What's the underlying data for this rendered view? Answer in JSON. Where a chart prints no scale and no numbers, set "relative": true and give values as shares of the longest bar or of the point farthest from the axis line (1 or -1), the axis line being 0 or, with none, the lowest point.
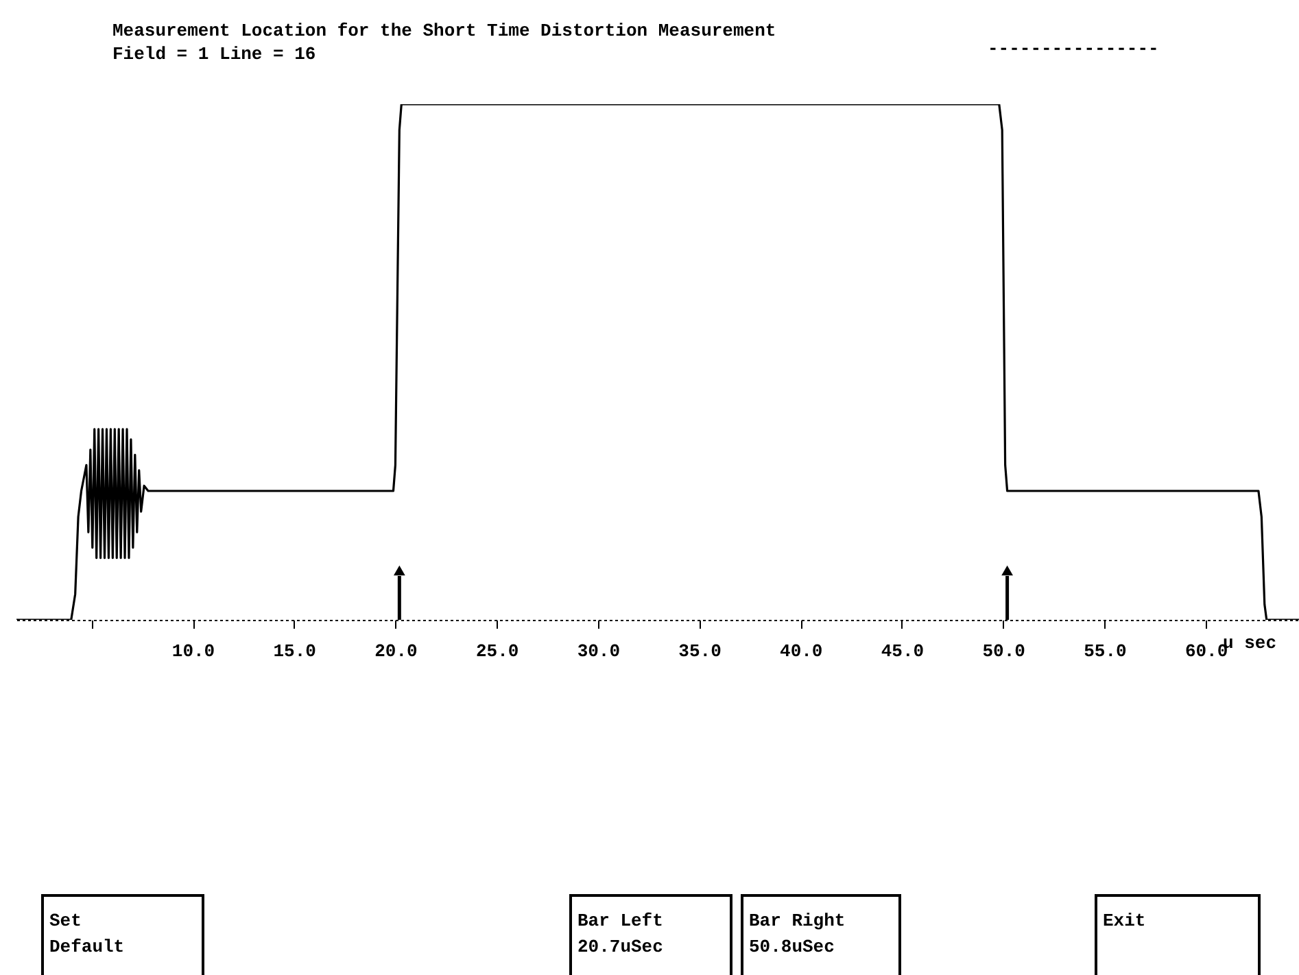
{
  "chart_data": {
    "type": "line",
    "title": "Measurement Location for the Short Time Distortion Measurement",
    "subtitle": "Field = 1 Line =  16",
    "xlabel": "u sec",
    "relative": true,
    "grid": false,
    "marker": "none",
    "line_style": "solid",
    "xlim": [
      1.3,
      64.6
    ],
    "xticks": [
      {
        "value": 5,
        "label": null
      },
      {
        "value": 10,
        "label": "10.0"
      },
      {
        "value": 15,
        "label": "15.0"
      },
      {
        "value": 20,
        "label": "20.0"
      },
      {
        "value": 25,
        "label": "25.0"
      },
      {
        "value": 30,
        "label": "30.0"
      },
      {
        "value": 35,
        "label": "35.0"
      },
      {
        "value": 40,
        "label": "40.0"
      },
      {
        "value": 45,
        "label": "45.0"
      },
      {
        "value": 50,
        "label": "50.0"
      },
      {
        "value": 55,
        "label": "55.0"
      },
      {
        "value": 60,
        "label": "60.0"
      }
    ],
    "series": [
      {
        "color": "#000000",
        "x": [
          1.3,
          4.0,
          4.2,
          4.35,
          4.5,
          4.6,
          4.75,
          4.85,
          4.95,
          5.05,
          5.15,
          5.25,
          5.35,
          5.45,
          5.55,
          5.65,
          5.75,
          5.85,
          5.95,
          6.05,
          6.15,
          6.25,
          6.35,
          6.45,
          6.55,
          6.65,
          6.75,
          6.85,
          6.95,
          7.05,
          7.15,
          7.25,
          7.35,
          7.45,
          7.6,
          7.8,
          19.9,
          20.0,
          20.2,
          20.3,
          49.8,
          49.95,
          50.1,
          50.2,
          62.6,
          62.75,
          62.9,
          63.0,
          64.6
        ],
        "values": [
          0,
          0,
          0.05,
          0.2,
          0.25,
          0.27,
          0.3,
          0.17,
          0.33,
          0.14,
          0.37,
          0.12,
          0.37,
          0.12,
          0.37,
          0.12,
          0.37,
          0.12,
          0.37,
          0.12,
          0.37,
          0.12,
          0.37,
          0.12,
          0.37,
          0.12,
          0.37,
          0.12,
          0.35,
          0.14,
          0.32,
          0.17,
          0.29,
          0.21,
          0.26,
          0.25,
          0.25,
          0.3,
          0.95,
          1.0,
          1.0,
          0.95,
          0.3,
          0.25,
          0.25,
          0.2,
          0.03,
          0,
          0
        ]
      }
    ],
    "ref_lines": [
      {
        "axis": "x",
        "value": 20.2
      },
      {
        "axis": "x",
        "value": 50.2
      }
    ],
    "annotations": [
      "----------------",
      "Set\nDefault",
      "Bar Left\n20.7uSec",
      "Bar Right\n50.8uSec",
      "Exit"
    ]
  }
}
